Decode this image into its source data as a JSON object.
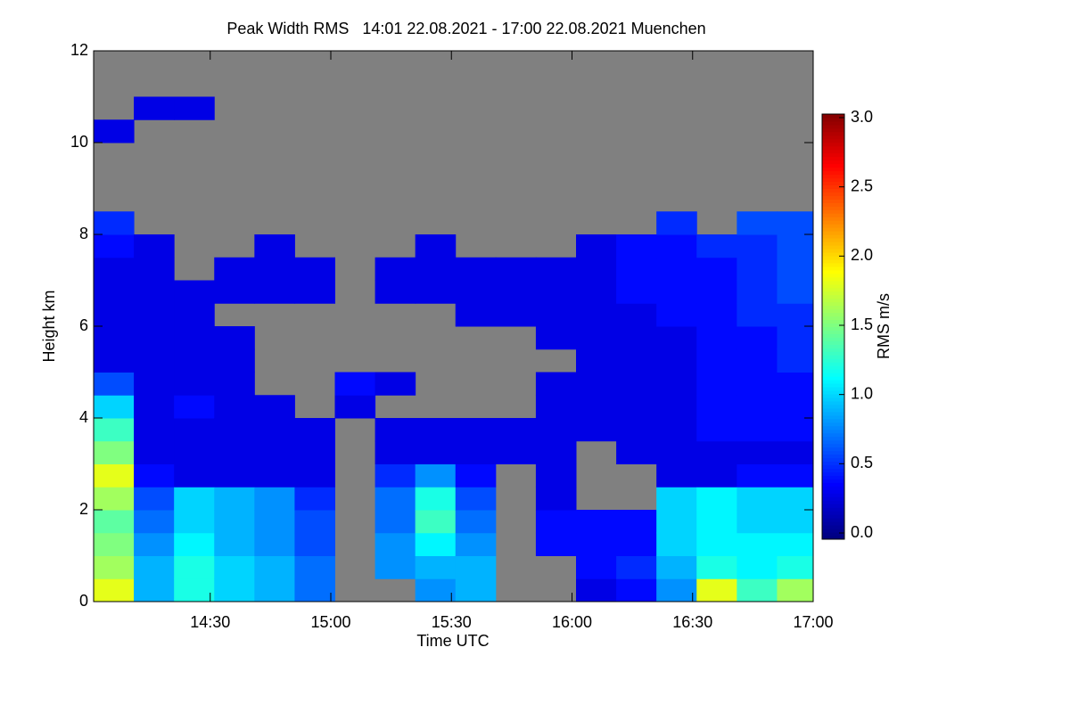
{
  "chart_data": {
    "type": "heatmap",
    "title": "Peak Width RMS   14:01 22.08.2021 - 17:00 22.08.2021 Muenchen",
    "x_label": "Time UTC",
    "y_label": "Height km",
    "colorbar_label": "RMS m/s",
    "colormap": "jet",
    "x": [
      "14:06",
      "14:16",
      "14:26",
      "14:36",
      "14:46",
      "14:56",
      "15:06",
      "15:16",
      "15:26",
      "15:36",
      "15:46",
      "15:56",
      "16:06",
      "16:16",
      "16:26",
      "16:36",
      "16:46",
      "16:56"
    ],
    "y": [
      0.25,
      0.75,
      1.25,
      1.75,
      2.25,
      2.75,
      3.25,
      3.75,
      4.25,
      4.75,
      5.25,
      5.75,
      6.25,
      6.75,
      7.25,
      7.75,
      8.25,
      8.75,
      9.25,
      9.75,
      10.25,
      10.75,
      11.25,
      11.75
    ],
    "z": [
      [
        1.8,
        1.6,
        1.5,
        1.4,
        1.6,
        1.8,
        1.5,
        1.3,
        1.0,
        0.6,
        0.3,
        0.3,
        0.3,
        0.3,
        0.3,
        0.4,
        0.5,
        null,
        null,
        null,
        0.3,
        null,
        null,
        null
      ],
      [
        0.9,
        0.9,
        0.8,
        0.7,
        0.6,
        0.4,
        0.3,
        0.3,
        0.3,
        0.3,
        0.3,
        0.3,
        0.3,
        0.3,
        0.3,
        0.3,
        null,
        null,
        null,
        null,
        null,
        0.3,
        null,
        null
      ],
      [
        1.2,
        1.2,
        1.1,
        1.0,
        1.0,
        0.3,
        0.3,
        0.3,
        0.4,
        0.3,
        0.3,
        0.3,
        0.3,
        0.3,
        null,
        null,
        null,
        null,
        null,
        null,
        null,
        0.3,
        null,
        null
      ],
      [
        1.0,
        1.0,
        0.9,
        0.9,
        0.9,
        0.3,
        0.3,
        0.3,
        0.3,
        0.3,
        0.3,
        0.3,
        null,
        0.3,
        0.3,
        null,
        null,
        null,
        null,
        null,
        null,
        null,
        null,
        null
      ],
      [
        0.9,
        0.9,
        0.8,
        0.8,
        0.8,
        0.3,
        0.3,
        0.3,
        0.3,
        null,
        null,
        null,
        null,
        0.3,
        0.3,
        0.3,
        null,
        null,
        null,
        null,
        null,
        null,
        null,
        null
      ],
      [
        0.7,
        0.7,
        0.6,
        0.6,
        0.5,
        0.3,
        0.3,
        0.3,
        null,
        null,
        null,
        null,
        null,
        0.3,
        0.3,
        null,
        null,
        null,
        null,
        null,
        null,
        null,
        null,
        null
      ],
      [
        null,
        null,
        null,
        null,
        null,
        null,
        null,
        null,
        0.3,
        0.4,
        null,
        null,
        null,
        null,
        null,
        null,
        null,
        null,
        null,
        null,
        null,
        null,
        null,
        null
      ],
      [
        null,
        0.8,
        0.8,
        0.7,
        0.7,
        0.5,
        0.3,
        0.3,
        null,
        0.3,
        null,
        null,
        null,
        0.3,
        0.3,
        null,
        null,
        null,
        null,
        null,
        null,
        null,
        null,
        null
      ],
      [
        0.8,
        0.9,
        1.1,
        1.3,
        1.2,
        0.8,
        0.3,
        0.3,
        null,
        null,
        null,
        null,
        null,
        0.3,
        0.3,
        0.3,
        null,
        null,
        null,
        null,
        null,
        null,
        null,
        null
      ],
      [
        0.9,
        0.9,
        0.8,
        0.7,
        0.6,
        0.4,
        0.3,
        0.3,
        null,
        null,
        null,
        null,
        0.3,
        0.3,
        0.3,
        null,
        null,
        null,
        null,
        null,
        null,
        null,
        null,
        null
      ],
      [
        null,
        null,
        null,
        null,
        null,
        null,
        0.3,
        0.3,
        null,
        null,
        null,
        null,
        0.3,
        0.3,
        0.3,
        null,
        null,
        null,
        null,
        null,
        null,
        null,
        null,
        null
      ],
      [
        null,
        null,
        0.4,
        0.4,
        0.3,
        0.3,
        0.3,
        0.3,
        0.3,
        0.3,
        null,
        0.3,
        0.3,
        0.3,
        0.3,
        null,
        null,
        null,
        null,
        null,
        null,
        null,
        null,
        null
      ],
      [
        0.3,
        0.4,
        0.4,
        0.4,
        null,
        null,
        null,
        0.3,
        0.3,
        0.3,
        0.3,
        0.3,
        0.3,
        0.3,
        0.3,
        0.3,
        null,
        null,
        null,
        null,
        null,
        null,
        null,
        null
      ],
      [
        0.4,
        0.5,
        0.4,
        0.4,
        null,
        null,
        0.3,
        0.3,
        0.3,
        0.3,
        0.3,
        0.3,
        0.3,
        0.4,
        0.4,
        0.4,
        null,
        null,
        null,
        null,
        null,
        null,
        null,
        null
      ],
      [
        0.8,
        0.9,
        1.0,
        1.0,
        1.0,
        0.3,
        0.3,
        0.3,
        0.3,
        0.3,
        0.3,
        0.3,
        0.4,
        0.4,
        0.4,
        0.4,
        0.5,
        null,
        null,
        null,
        null,
        null,
        null,
        null
      ],
      [
        1.8,
        1.2,
        1.1,
        1.1,
        1.1,
        0.3,
        0.3,
        0.4,
        0.4,
        0.4,
        0.4,
        0.4,
        0.4,
        0.4,
        0.4,
        0.5,
        null,
        null,
        null,
        null,
        null,
        null,
        null,
        null
      ],
      [
        1.3,
        1.1,
        1.1,
        1.0,
        1.0,
        0.4,
        0.3,
        0.4,
        0.4,
        0.4,
        0.4,
        0.4,
        0.5,
        0.5,
        0.5,
        0.5,
        0.6,
        null,
        null,
        null,
        null,
        null,
        null,
        null
      ],
      [
        1.6,
        1.2,
        1.1,
        1.0,
        1.0,
        0.4,
        0.3,
        0.4,
        0.4,
        0.4,
        0.5,
        0.5,
        0.5,
        0.6,
        0.6,
        0.6,
        0.6,
        null,
        null,
        null,
        null,
        null,
        null,
        null
      ]
    ],
    "xlim": [
      "14:01",
      "17:00"
    ],
    "xticks": [
      "14:30",
      "15:00",
      "15:30",
      "16:00",
      "16:30",
      "17:00"
    ],
    "ylim": [
      0,
      12
    ],
    "yticks": [
      0,
      2,
      4,
      6,
      8,
      10,
      12
    ],
    "zlim": [
      0,
      3
    ],
    "zticks": [
      {
        "value": 0,
        "label": "0.0"
      },
      {
        "value": 0.5,
        "label": "0.5"
      },
      {
        "value": 1,
        "label": "1.0"
      },
      {
        "value": 1.5,
        "label": "1.5"
      },
      {
        "value": 2,
        "label": "2.0"
      },
      {
        "value": 2.5,
        "label": "2.5"
      },
      {
        "value": 3,
        "label": "3.0"
      }
    ]
  }
}
